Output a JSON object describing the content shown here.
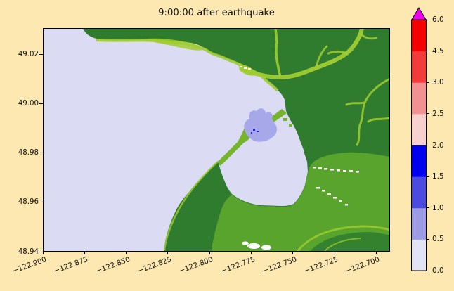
{
  "title": "9:00:00 after earthquake",
  "palette": {
    "figure_background": "#fce8b0",
    "water": "#dbdcf4",
    "land_dark": "#2f7c2f",
    "land_medium": "#58a42c",
    "land_light": "#a0cc30",
    "spit_green": "#76b42c",
    "flood_light": "#a6a8ea",
    "flood_deep": "#2222dd",
    "stream_white": "#ffffff",
    "axis_color": "#000000"
  },
  "axes": {
    "x_tick_labels": [
      "−122.900",
      "−122.875",
      "−122.850",
      "−122.825",
      "−122.800",
      "−122.775",
      "−122.750",
      "−122.725",
      "−122.700"
    ],
    "y_tick_labels": [
      "49.02",
      "49.00",
      "48.98",
      "48.96",
      "48.94"
    ]
  },
  "colorbar": {
    "tick_labels_top_to_bottom": [
      "6.0",
      "4.5",
      "3.0",
      "2.5",
      "2.0",
      "1.5",
      "1.0",
      "0.5",
      "0.0"
    ],
    "segment_colors_bottom_to_top": [
      "#e3e3f7",
      "#9b9be6",
      "#4b4be0",
      "#0000f0",
      "#f8d0d0",
      "#f29191",
      "#f23c3c",
      "#f50000"
    ],
    "over_color": "#f000f0"
  },
  "chart_data": {
    "type": "heatmap",
    "title": "9:00:00 after earthquake",
    "xlabel": "",
    "ylabel": "",
    "xlim": [
      -122.9,
      -122.688
    ],
    "ylim": [
      48.94,
      49.031
    ],
    "x_tick_labels": [
      "-122.900",
      "-122.875",
      "-122.850",
      "-122.825",
      "-122.800",
      "-122.775",
      "-122.750",
      "-122.725",
      "-122.700"
    ],
    "y_tick_labels": [
      "49.02",
      "49.00",
      "48.98",
      "48.96",
      "48.94"
    ],
    "grid": false,
    "legend_position": "right-colorbar",
    "colorbar": {
      "tick_values": [
        0.0,
        0.5,
        1.0,
        1.5,
        2.0,
        2.5,
        3.0,
        4.5,
        6.0
      ],
      "segment_colors_bottom_to_top": [
        "#e3e3f7",
        "#9b9be6",
        "#4b4be0",
        "#0000f0",
        "#f8d0d0",
        "#f29191",
        "#f23c3c",
        "#f50000"
      ],
      "over_arrow_color": "#f000f0",
      "orientation": "vertical"
    },
    "regions": [
      {
        "name": "Semiahmoo Bay open water (left/center)",
        "value_range": [
          0.0,
          0.5
        ],
        "color": "#dbdcf4"
      },
      {
        "name": "Drayton Harbor enclosed water (center-right)",
        "value_range": [
          0.0,
          0.5
        ],
        "color": "#dbdcf4"
      },
      {
        "name": "Flooded marina patch at harbor entrance (~-122.79, 48.985)",
        "value_range": [
          0.5,
          1.0
        ],
        "color": "#a6a8ea"
      },
      {
        "name": "Small deep-flood pixels in marina",
        "value_range": [
          1.5,
          2.0
        ],
        "color": "#2222dd"
      },
      {
        "name": "Northern upland shore (top, with river valley)",
        "value": "land (green topography)",
        "color": "#2f7c2f"
      },
      {
        "name": "Eastern upland with dendritic stream valleys",
        "value": "land (green topography)",
        "color": "#58a42c"
      },
      {
        "name": "Birch Point peninsula and Semiahmoo Spit (bottom-center)",
        "value": "land (green topography)",
        "color": "#2f7c2f"
      }
    ]
  }
}
